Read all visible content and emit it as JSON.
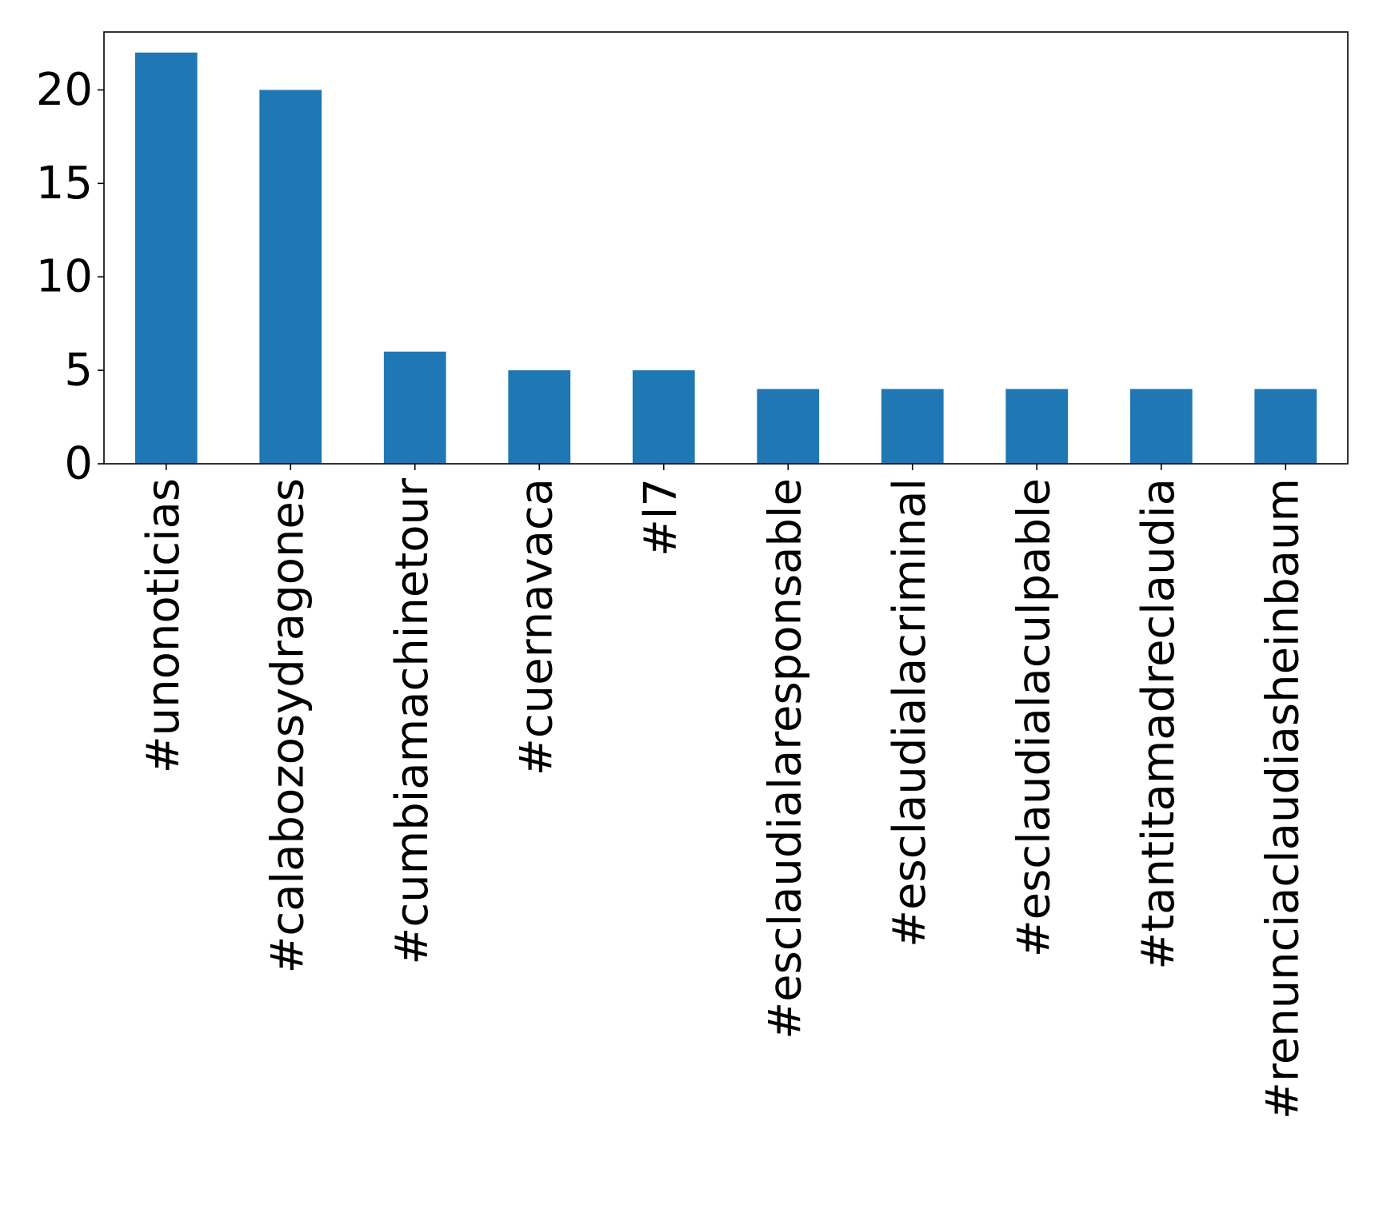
{
  "chart_data": {
    "type": "bar",
    "title": "",
    "xlabel": "",
    "ylabel": "",
    "categories": [
      "#unonoticias",
      "#calabozosydragones",
      "#cumbiamachinetour",
      "#cuernavaca",
      "#l7",
      "#esclaudialaresponsable",
      "#esclaudialacriminal",
      "#esclaudialaculpable",
      "#tantitamadreclaudia",
      "#renunciaclaudiasheinbaum"
    ],
    "values": [
      22,
      20,
      6,
      5,
      5,
      4,
      4,
      4,
      4,
      4
    ],
    "ylim": [
      0,
      23.1
    ],
    "yticks": [
      0,
      5,
      10,
      15,
      20
    ],
    "bar_color": "#1f77b4",
    "grid": false,
    "legend": "none"
  }
}
